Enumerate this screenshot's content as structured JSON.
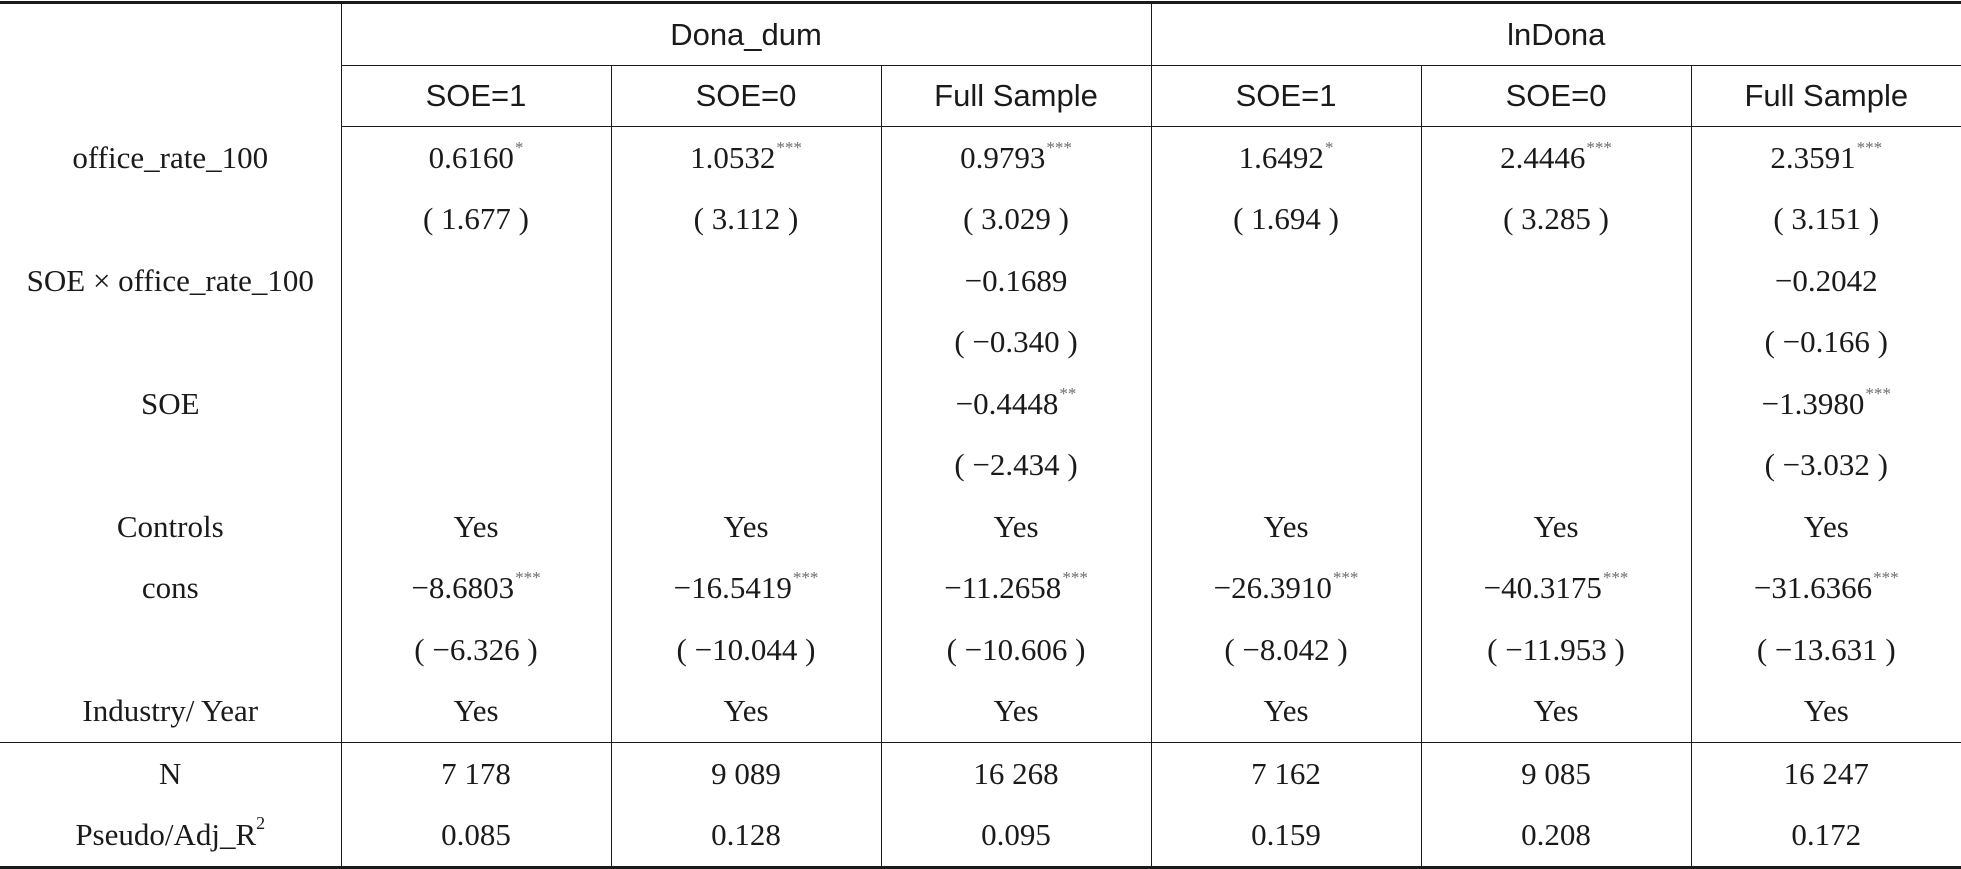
{
  "header": {
    "group1": "Dona_dum",
    "group2": "lnDona",
    "subcols": [
      "SOE=1",
      "SOE=0",
      "Full Sample",
      "SOE=1",
      "SOE=0",
      "Full Sample"
    ]
  },
  "rows": [
    {
      "label": "office_rate_100",
      "cells": [
        {
          "v": "0.6160",
          "s": "*"
        },
        {
          "v": "1.0532",
          "s": "***"
        },
        {
          "v": "0.9793",
          "s": "***"
        },
        {
          "v": "1.6492",
          "s": "*"
        },
        {
          "v": "2.4446",
          "s": "***"
        },
        {
          "v": "2.3591",
          "s": "***"
        }
      ]
    },
    {
      "label": "",
      "cells": [
        {
          "v": "( 1.677 )",
          "s": ""
        },
        {
          "v": "( 3.112 )",
          "s": ""
        },
        {
          "v": "( 3.029 )",
          "s": ""
        },
        {
          "v": "( 1.694 )",
          "s": ""
        },
        {
          "v": "( 3.285 )",
          "s": ""
        },
        {
          "v": "( 3.151 )",
          "s": ""
        }
      ]
    },
    {
      "label": "SOE × office_rate_100",
      "cells": [
        {
          "v": "",
          "s": ""
        },
        {
          "v": "",
          "s": ""
        },
        {
          "v": "−0.1689",
          "s": ""
        },
        {
          "v": "",
          "s": ""
        },
        {
          "v": "",
          "s": ""
        },
        {
          "v": "−0.2042",
          "s": ""
        }
      ]
    },
    {
      "label": "",
      "cells": [
        {
          "v": "",
          "s": ""
        },
        {
          "v": "",
          "s": ""
        },
        {
          "v": "( −0.340 )",
          "s": ""
        },
        {
          "v": "",
          "s": ""
        },
        {
          "v": "",
          "s": ""
        },
        {
          "v": "( −0.166 )",
          "s": ""
        }
      ]
    },
    {
      "label": "SOE",
      "cells": [
        {
          "v": "",
          "s": ""
        },
        {
          "v": "",
          "s": ""
        },
        {
          "v": "−0.4448",
          "s": "**"
        },
        {
          "v": "",
          "s": ""
        },
        {
          "v": "",
          "s": ""
        },
        {
          "v": "−1.3980",
          "s": "***"
        }
      ]
    },
    {
      "label": "",
      "cells": [
        {
          "v": "",
          "s": ""
        },
        {
          "v": "",
          "s": ""
        },
        {
          "v": "( −2.434 )",
          "s": ""
        },
        {
          "v": "",
          "s": ""
        },
        {
          "v": "",
          "s": ""
        },
        {
          "v": "( −3.032 )",
          "s": ""
        }
      ]
    },
    {
      "label": "Controls",
      "cells": [
        {
          "v": "Yes",
          "s": ""
        },
        {
          "v": "Yes",
          "s": ""
        },
        {
          "v": "Yes",
          "s": ""
        },
        {
          "v": "Yes",
          "s": ""
        },
        {
          "v": "Yes",
          "s": ""
        },
        {
          "v": "Yes",
          "s": ""
        }
      ]
    },
    {
      "label": "cons",
      "cells": [
        {
          "v": "−8.6803",
          "s": "***"
        },
        {
          "v": "−16.5419",
          "s": "***"
        },
        {
          "v": "−11.2658",
          "s": "***"
        },
        {
          "v": "−26.3910",
          "s": "***"
        },
        {
          "v": "−40.3175",
          "s": "***"
        },
        {
          "v": "−31.6366",
          "s": "***"
        }
      ]
    },
    {
      "label": "",
      "cells": [
        {
          "v": "( −6.326 )",
          "s": ""
        },
        {
          "v": "( −10.044 )",
          "s": ""
        },
        {
          "v": "( −10.606 )",
          "s": ""
        },
        {
          "v": "( −8.042 )",
          "s": ""
        },
        {
          "v": "( −11.953 )",
          "s": ""
        },
        {
          "v": "( −13.631 )",
          "s": ""
        }
      ]
    },
    {
      "label": "Industry/ Year",
      "cells": [
        {
          "v": "Yes",
          "s": ""
        },
        {
          "v": "Yes",
          "s": ""
        },
        {
          "v": "Yes",
          "s": ""
        },
        {
          "v": "Yes",
          "s": ""
        },
        {
          "v": "Yes",
          "s": ""
        },
        {
          "v": "Yes",
          "s": ""
        }
      ]
    },
    {
      "label": "N",
      "cells": [
        {
          "v": "7 178",
          "s": ""
        },
        {
          "v": "9 089",
          "s": ""
        },
        {
          "v": "16 268",
          "s": ""
        },
        {
          "v": "7 162",
          "s": ""
        },
        {
          "v": "9 085",
          "s": ""
        },
        {
          "v": "16 247",
          "s": ""
        }
      ]
    },
    {
      "label": "Pseudo/Adj_R",
      "label_sup": "2",
      "cells": [
        {
          "v": "0.085",
          "s": ""
        },
        {
          "v": "0.128",
          "s": ""
        },
        {
          "v": "0.095",
          "s": ""
        },
        {
          "v": "0.159",
          "s": ""
        },
        {
          "v": "0.208",
          "s": ""
        },
        {
          "v": "0.172",
          "s": ""
        }
      ]
    }
  ]
}
